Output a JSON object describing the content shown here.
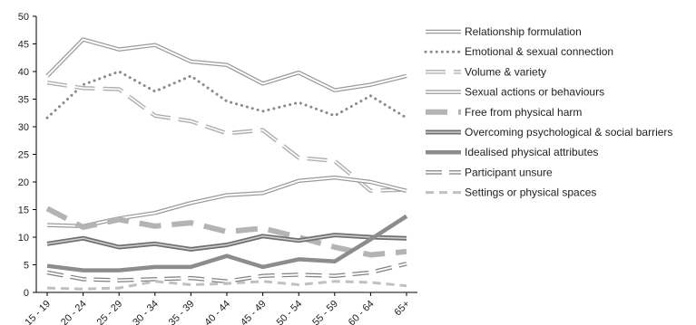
{
  "chart_data": {
    "type": "line",
    "categories": [
      "15 - 19",
      "20 - 24",
      "25 - 29",
      "30 - 34",
      "35 - 39",
      "40 - 44",
      "45 - 49",
      "50 - 54",
      "55 - 59",
      "60 - 64",
      "65+"
    ],
    "ylim": [
      0,
      50
    ],
    "yticks": [
      0,
      5,
      10,
      15,
      20,
      25,
      30,
      35,
      40,
      45,
      50
    ],
    "grid": false,
    "legend_position": "right",
    "series": [
      {
        "name": "Relationship formulation",
        "style": "double",
        "color": "#9a9a9a",
        "values": [
          39.2,
          45.8,
          44.0,
          44.8,
          41.8,
          41.2,
          37.8,
          39.8,
          36.6,
          37.6,
          39.2
        ]
      },
      {
        "name": "Emotional & sexual connection",
        "style": "dotted",
        "color": "#8a8a8a",
        "values": [
          31.6,
          37.6,
          40.0,
          36.4,
          39.2,
          34.6,
          32.8,
          34.4,
          32.0,
          35.6,
          31.6
        ]
      },
      {
        "name": "Volume & variety",
        "style": "long-dash-double",
        "color": "#b0b0b0",
        "values": [
          38.0,
          37.0,
          36.8,
          32.0,
          31.0,
          28.8,
          29.4,
          24.4,
          23.8,
          18.4,
          18.6
        ]
      },
      {
        "name": "Sexual actions or behaviours",
        "style": "double",
        "color": "#9a9a9a",
        "values": [
          12.2,
          12.0,
          13.4,
          14.4,
          16.2,
          17.6,
          18.0,
          20.2,
          20.8,
          20.0,
          18.4
        ]
      },
      {
        "name": "Free from physical harm",
        "style": "thick-dash",
        "color": "#b4b4b4",
        "values": [
          15.2,
          11.8,
          13.2,
          12.0,
          12.6,
          11.0,
          11.6,
          10.0,
          8.2,
          6.8,
          7.4
        ]
      },
      {
        "name": "Overcoming psychological & social barriers",
        "style": "double-dark",
        "color": "#707070",
        "values": [
          8.8,
          9.8,
          8.2,
          8.8,
          7.8,
          8.6,
          10.2,
          9.4,
          10.4,
          10.0,
          9.8
        ]
      },
      {
        "name": "Idealised physical attributes",
        "style": "thick",
        "color": "#8c8c8c",
        "values": [
          4.8,
          4.0,
          4.0,
          4.6,
          4.6,
          6.6,
          4.6,
          6.0,
          5.6,
          9.6,
          13.8
        ]
      },
      {
        "name": "Participant unsure",
        "style": "double-dashed",
        "color": "#808080",
        "values": [
          3.6,
          2.4,
          2.2,
          2.4,
          2.6,
          2.0,
          3.0,
          3.2,
          3.0,
          3.6,
          5.2
        ]
      },
      {
        "name": "Settings or physical spaces",
        "style": "dashed",
        "color": "#c0c0c0",
        "values": [
          0.8,
          0.6,
          0.8,
          2.0,
          1.4,
          1.6,
          2.0,
          1.4,
          2.0,
          1.8,
          1.2
        ]
      }
    ]
  }
}
